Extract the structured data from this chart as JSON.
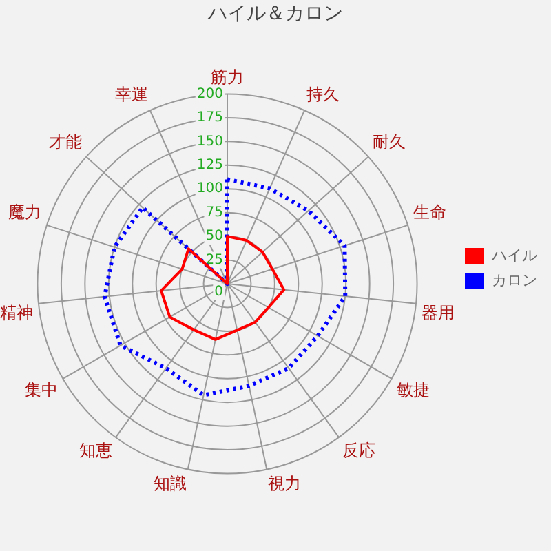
{
  "chart_data": {
    "type": "radar",
    "title": "ハイル＆カロン",
    "categories": [
      "筋力",
      "持久",
      "耐久",
      "生命",
      "器用",
      "敏捷",
      "反応",
      "視力",
      "知識",
      "知恵",
      "集中",
      "精神",
      "魔力",
      "才能",
      "幸運"
    ],
    "series": [
      {
        "name": "ハイル",
        "color": "#ff0000",
        "line_style": "solid",
        "values": [
          50,
          50,
          50,
          50,
          60,
          50,
          50,
          50,
          60,
          60,
          70,
          70,
          50,
          55,
          0
        ]
      },
      {
        "name": "カロン",
        "color": "#0000ff",
        "line_style": "dotted",
        "values": [
          110,
          110,
          115,
          130,
          125,
          110,
          110,
          110,
          120,
          110,
          130,
          130,
          125,
          120,
          0
        ]
      }
    ],
    "ylim": [
      0,
      200
    ],
    "yticks": [
      0,
      25,
      50,
      75,
      100,
      125,
      150,
      175,
      200
    ],
    "grid": true,
    "legend": "right",
    "marker": "none"
  }
}
